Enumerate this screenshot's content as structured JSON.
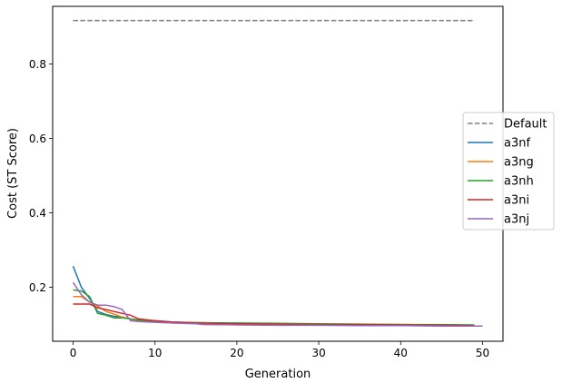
{
  "chart_data": {
    "type": "line",
    "title": "",
    "xlabel": "Generation",
    "ylabel": "Cost (ST Score)",
    "xlim": [
      -2.5,
      52.5
    ],
    "ylim": [
      0.055,
      0.955
    ],
    "xticks": [
      0,
      10,
      20,
      30,
      40,
      50
    ],
    "yticks": [
      0.2,
      0.4,
      0.6,
      0.8
    ],
    "xtick_labels": [
      "0",
      "10",
      "20",
      "30",
      "40",
      "50"
    ],
    "ytick_labels": [
      "0.2",
      "0.4",
      "0.6",
      "0.8"
    ],
    "grid": false,
    "legend_position": "center-right",
    "series": [
      {
        "name": "Default",
        "color": "#7f7f7f",
        "dash": true,
        "x": [
          0,
          49
        ],
        "y": [
          0.917,
          0.917
        ]
      },
      {
        "name": "a3nf",
        "color": "#1f77b4",
        "dash": false,
        "x": [
          0,
          1,
          2,
          3,
          4,
          5,
          6,
          7,
          8,
          10,
          12,
          15,
          20,
          25,
          30,
          35,
          40,
          45,
          49
        ],
        "y": [
          0.257,
          0.2,
          0.17,
          0.135,
          0.127,
          0.122,
          0.12,
          0.115,
          0.112,
          0.11,
          0.107,
          0.105,
          0.103,
          0.102,
          0.101,
          0.1,
          0.1,
          0.099,
          0.098
        ]
      },
      {
        "name": "a3ng",
        "color": "#ff7f0e",
        "dash": false,
        "x": [
          0,
          1,
          2,
          3,
          4,
          5,
          6,
          7,
          8,
          10,
          12,
          15,
          20,
          25,
          30,
          35,
          40,
          45,
          49
        ],
        "y": [
          0.175,
          0.175,
          0.16,
          0.15,
          0.135,
          0.128,
          0.12,
          0.115,
          0.11,
          0.108,
          0.106,
          0.104,
          0.103,
          0.102,
          0.101,
          0.1,
          0.1,
          0.099,
          0.098
        ]
      },
      {
        "name": "a3nh",
        "color": "#2ca02c",
        "dash": false,
        "x": [
          0,
          1,
          2,
          3,
          4,
          5,
          6,
          7,
          8,
          10,
          12,
          15,
          20,
          25,
          30,
          35,
          40,
          45,
          49
        ],
        "y": [
          0.193,
          0.19,
          0.175,
          0.13,
          0.125,
          0.118,
          0.118,
          0.115,
          0.112,
          0.108,
          0.106,
          0.105,
          0.104,
          0.103,
          0.102,
          0.101,
          0.1,
          0.1,
          0.099
        ]
      },
      {
        "name": "a3ni",
        "color": "#d62728",
        "dash": false,
        "x": [
          0,
          1,
          2,
          3,
          4,
          5,
          6,
          7,
          8,
          10,
          12,
          15,
          20,
          25,
          30,
          35,
          40,
          45,
          49
        ],
        "y": [
          0.155,
          0.155,
          0.155,
          0.145,
          0.14,
          0.135,
          0.13,
          0.125,
          0.115,
          0.11,
          0.107,
          0.104,
          0.102,
          0.101,
          0.1,
          0.1,
          0.099,
          0.098,
          0.097
        ]
      },
      {
        "name": "a3nj",
        "color": "#9467bd",
        "dash": false,
        "x": [
          0,
          1,
          2,
          3,
          4,
          5,
          6,
          7,
          8,
          10,
          12,
          15,
          16,
          20,
          25,
          30,
          35,
          40,
          45,
          50
        ],
        "y": [
          0.213,
          0.18,
          0.16,
          0.152,
          0.152,
          0.148,
          0.14,
          0.11,
          0.108,
          0.106,
          0.104,
          0.102,
          0.1,
          0.099,
          0.098,
          0.098,
          0.097,
          0.097,
          0.096,
          0.096
        ]
      }
    ]
  }
}
